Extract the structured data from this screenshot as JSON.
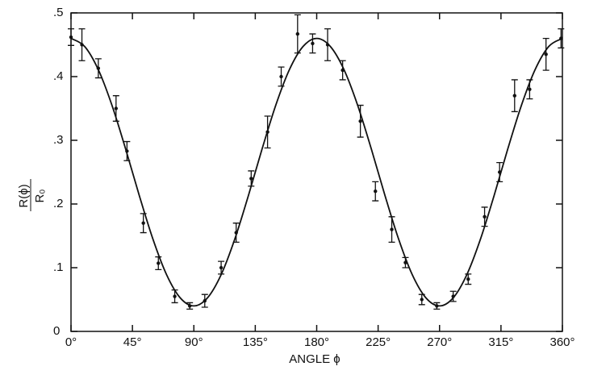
{
  "chart_data": {
    "type": "scatter",
    "xlabel": "ANGLE ϕ",
    "ylabel": "R(ϕ)",
    "ylabel_denominator": "R₀",
    "xlim": [
      0,
      360
    ],
    "ylim": [
      0,
      0.5
    ],
    "xticks": [
      {
        "value": 0,
        "label": "0°"
      },
      {
        "value": 45,
        "label": "45°"
      },
      {
        "value": 90,
        "label": "90°"
      },
      {
        "value": 135,
        "label": "135°"
      },
      {
        "value": 180,
        "label": "180°"
      },
      {
        "value": 225,
        "label": "225°"
      },
      {
        "value": 270,
        "label": "270°"
      },
      {
        "value": 315,
        "label": "315°"
      },
      {
        "value": 360,
        "label": "360°"
      }
    ],
    "yticks": [
      0,
      {
        "value": 0.1,
        "label": ".1"
      },
      {
        "value": 0.2,
        "label": ".2"
      },
      {
        "value": 0.3,
        "label": ".3"
      },
      {
        "value": 0.4,
        "label": ".4"
      },
      {
        "value": 0.5,
        "label": ".5"
      }
    ],
    "color": "#111111",
    "series": [
      {
        "x": [
          0,
          8,
          20,
          33,
          41,
          53,
          64,
          76,
          87,
          98,
          110,
          121,
          132,
          144,
          154,
          166,
          177,
          188,
          199,
          212,
          223,
          235,
          245,
          257,
          268,
          280,
          291,
          303,
          314,
          325,
          336,
          348,
          359
        ],
        "values": [
          0.462,
          0.45,
          0.413,
          0.35,
          0.283,
          0.17,
          0.107,
          0.055,
          0.04,
          0.048,
          0.1,
          0.155,
          0.24,
          0.313,
          0.4,
          0.467,
          0.452,
          0.45,
          0.41,
          0.33,
          0.22,
          0.16,
          0.108,
          0.05,
          0.04,
          0.055,
          0.082,
          0.18,
          0.25,
          0.37,
          0.38,
          0.435,
          0.46
        ],
        "errors": [
          0.013,
          0.025,
          0.015,
          0.02,
          0.015,
          0.015,
          0.01,
          0.01,
          0.005,
          0.01,
          0.01,
          0.015,
          0.012,
          0.025,
          0.015,
          0.03,
          0.015,
          0.025,
          0.015,
          0.025,
          0.015,
          0.02,
          0.008,
          0.008,
          0.005,
          0.008,
          0.008,
          0.015,
          0.015,
          0.025,
          0.015,
          0.025,
          0.015
        ]
      },
      {
        "type": "line",
        "x": [
          0,
          10,
          20,
          30,
          40,
          50,
          60,
          70,
          80,
          90,
          100,
          110,
          120,
          130,
          140,
          150,
          160,
          170,
          180,
          190,
          200,
          210,
          220,
          230,
          240,
          250,
          260,
          270,
          280,
          290,
          300,
          310,
          320,
          330,
          340,
          350,
          360
        ],
        "values": [
          0.46,
          0.4473,
          0.4109,
          0.355,
          0.2865,
          0.2135,
          0.145,
          0.0891,
          0.0527,
          0.04,
          0.0527,
          0.0891,
          0.145,
          0.2135,
          0.2865,
          0.355,
          0.4109,
          0.4473,
          0.46,
          0.4473,
          0.4109,
          0.355,
          0.2865,
          0.2135,
          0.145,
          0.0891,
          0.0527,
          0.04,
          0.0527,
          0.0891,
          0.145,
          0.2135,
          0.2865,
          0.355,
          0.4109,
          0.4473,
          0.46
        ]
      }
    ]
  }
}
